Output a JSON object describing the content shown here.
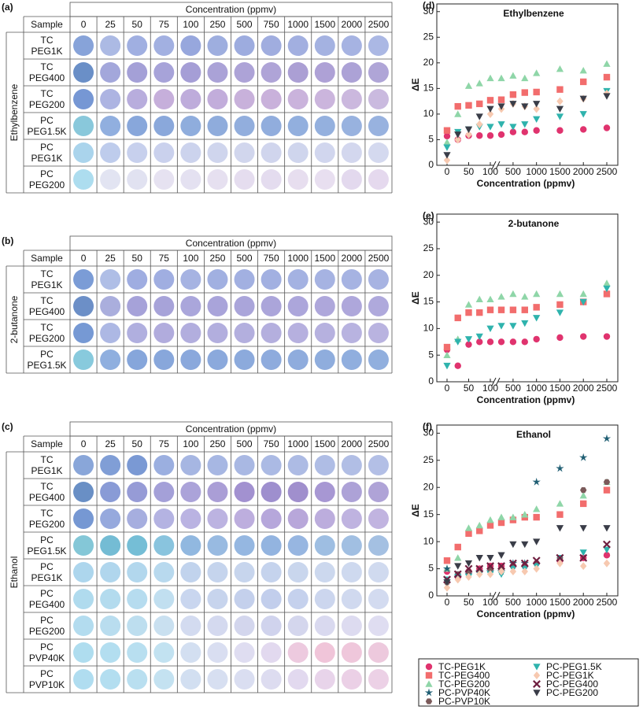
{
  "tables": [
    {
      "label": "(a)",
      "header": "Concentration (ppmv)",
      "sample_header": "Sample",
      "group": "Ethylbenzene",
      "columns": [
        "0",
        "25",
        "50",
        "75",
        "100",
        "250",
        "500",
        "750",
        "1000",
        "1500",
        "2000",
        "2500"
      ],
      "rows": [
        {
          "sample": [
            "TC",
            "PEG1K"
          ],
          "dot_colors": [
            "#7d9bd6",
            "#a5b4e2",
            "#98a8de",
            "#9aa9de",
            "#8e9fda",
            "#96a7dc",
            "#95a5dc",
            "#98a6dc",
            "#9aa8dd",
            "#9cabde",
            "#9eade0",
            "#a4b2e2"
          ]
        },
        {
          "sample": [
            "TC",
            "PEG400"
          ],
          "dot_colors": [
            "#5d86c2",
            "#9b9fd8",
            "#9c98d4",
            "#a09bd6",
            "#9d96d2",
            "#a39ad4",
            "#a69bd4",
            "#a89cd4",
            "#a497d0",
            "#a799d2",
            "#a59ad3",
            "#a89dd4"
          ]
        },
        {
          "sample": [
            "TC",
            "PEG200"
          ],
          "dot_colors": [
            "#6a8ed0",
            "#a6aee0",
            "#b2a6da",
            "#c1a8d8",
            "#b9a5d8",
            "#bda6d8",
            "#c3aad8",
            "#c4aad8",
            "#c6acd9",
            "#c7afda",
            "#c7b2db",
            "#c6b4dc"
          ]
        },
        {
          "sample": [
            "PC",
            "PEG1.5K"
          ],
          "dot_colors": [
            "#7fc3d8",
            "#88a8dc",
            "#7ea0d8",
            "#80a1d8",
            "#86a6da",
            "#86a5d9",
            "#89a7da",
            "#88a6da",
            "#89a8db",
            "#8ba9db",
            "#8fabdc",
            "#8fabdc"
          ]
        },
        {
          "sample": [
            "PC",
            "PEG1K"
          ],
          "dot_colors": [
            "#a3d0ea",
            "#b8c8ea",
            "#c2cceb",
            "#c6cdeb",
            "#c8cfeb",
            "#cbd1ec",
            "#cdd2ec",
            "#ccd1ec",
            "#cbd1ec",
            "#cdd3ed",
            "#cfd4ed",
            "#d0d6ee"
          ]
        },
        {
          "sample": [
            "PC",
            "PEG200"
          ],
          "dot_colors": [
            "#a6daee",
            "#dfe2f1",
            "#dedff0",
            "#e4e0f0",
            "#e2def0",
            "#e4ddef",
            "#e3daee",
            "#e2d9ee",
            "#e5dbee",
            "#e6dcef",
            "#e1d6ed",
            "#e3d6ed"
          ]
        }
      ]
    },
    {
      "label": "(b)",
      "header": "Concentration (ppmv)",
      "sample_header": "Sample",
      "group": "2-butanone",
      "columns": [
        "0",
        "25",
        "50",
        "75",
        "100",
        "250",
        "500",
        "750",
        "1000",
        "1500",
        "2000",
        "2500"
      ],
      "rows": [
        {
          "sample": [
            "TC",
            "PEG1K"
          ],
          "dot_colors": [
            "#7094d2",
            "#a8b8e4",
            "#97a6de",
            "#98a7de",
            "#9eade0",
            "#99a9de",
            "#9aa9de",
            "#9aa9de",
            "#9cabdf",
            "#9eade0",
            "#9eade0",
            "#9fade0"
          ]
        },
        {
          "sample": [
            "TC",
            "PEG400"
          ],
          "dot_colors": [
            "#5f86c2",
            "#a3a7da",
            "#9e9ad6",
            "#a09bd6",
            "#a39ed8",
            "#a29cd7",
            "#a39dd7",
            "#a49dd7",
            "#a59ed8",
            "#a79fd8",
            "#a7a0d8",
            "#a8a2d9"
          ]
        },
        {
          "sample": [
            "TC",
            "PEG200"
          ],
          "dot_colors": [
            "#6a90d0",
            "#a6b2e2",
            "#a9a8dc",
            "#aaa5da",
            "#aba7db",
            "#aba7db",
            "#aca8db",
            "#aea8db",
            "#b0a9dc",
            "#b0aadc",
            "#b2acdd",
            "#b3acdd"
          ]
        },
        {
          "sample": [
            "PC",
            "PEG1.5K"
          ],
          "dot_colors": [
            "#7ec6da",
            "#86a8dc",
            "#7c9ed8",
            "#7e9fd8",
            "#80a1d9",
            "#81a2d9",
            "#82a3d9",
            "#84a4da",
            "#85a5da",
            "#86a6da",
            "#87a7db",
            "#88a8db"
          ]
        }
      ]
    },
    {
      "label": "(c)",
      "header": "Concentration (ppmv)",
      "sample_header": "Sample",
      "group": "Ethanol",
      "columns": [
        "0",
        "25",
        "50",
        "75",
        "100",
        "250",
        "500",
        "750",
        "1000",
        "1500",
        "2000",
        "2500"
      ],
      "rows": [
        {
          "sample": [
            "TC",
            "PEG1K"
          ],
          "dot_colors": [
            "#7f9ed6",
            "#7596d3",
            "#6f90d0",
            "#93a8dd",
            "#9eb0e0",
            "#a0b1e1",
            "#a2b2e1",
            "#a4b4e2",
            "#a6b5e2",
            "#a8b7e3",
            "#aab8e3",
            "#acbae4"
          ]
        },
        {
          "sample": [
            "TC",
            "PEG400"
          ],
          "dot_colors": [
            "#5c85c0",
            "#7f92d3",
            "#8d93d3",
            "#9c98d5",
            "#a49bd6",
            "#a396d3",
            "#9a88cc",
            "#9686ca",
            "#9885c9",
            "#a08ecf",
            "#a69ad4",
            "#a89bd4"
          ]
        },
        {
          "sample": [
            "TC",
            "PEG200"
          ],
          "dot_colors": [
            "#6a8fcf",
            "#8da2da",
            "#9ea7dc",
            "#aeaddf",
            "#b4addf",
            "#b6acde",
            "#b7a7db",
            "#b0a0d8",
            "#b29fd7",
            "#b6a6da",
            "#baacdd",
            "#bcaedd"
          ]
        },
        {
          "sample": [
            "PC",
            "PEG1.5K"
          ],
          "dot_colors": [
            "#79c2d4",
            "#68b6d0",
            "#69b8d2",
            "#7fbfdb",
            "#88b2dd",
            "#8fb4de",
            "#8cb1de",
            "#8aaedd",
            "#8eb0de",
            "#96b8e0",
            "#99badf",
            "#9cbbe0"
          ]
        },
        {
          "sample": [
            "PC",
            "PEG1K"
          ],
          "dot_colors": [
            "#a6d3eb",
            "#a9d3ec",
            "#abd4ec",
            "#b2d6ed",
            "#bccfec",
            "#c0d0ec",
            "#c2d1ec",
            "#c0cfeb",
            "#c4d2ec",
            "#c8d5ed",
            "#cad6ee",
            "#ccd7ee"
          ]
        },
        {
          "sample": [
            "PC",
            "PEG400"
          ],
          "dot_colors": [
            "#a9d8ed",
            "#acd8ed",
            "#b0d9ee",
            "#bcdcef",
            "#c4d3ee",
            "#c2d0ec",
            "#bfccea",
            "#bdcaea",
            "#c0cdeb",
            "#c8d3ed",
            "#ccd6ee",
            "#cfd8ef"
          ]
        },
        {
          "sample": [
            "PC",
            "PEG200"
          ],
          "dot_colors": [
            "#add9ee",
            "#b3daee",
            "#b7dbee",
            "#c4ddef",
            "#cfd8ef",
            "#d0d6ee",
            "#cfd2ec",
            "#cccfeb",
            "#d0d2ec",
            "#d6d6ee",
            "#dad8ef",
            "#dcdaf0"
          ]
        },
        {
          "sample": [
            "PC",
            "PVP40K"
          ],
          "dot_colors": [
            "#a8daee",
            "#acdbef",
            "#b2dcef",
            "#bde0f0",
            "#cfdcf0",
            "#d6dbf0",
            "#dcdaf0",
            "#e0d6ee",
            "#ecc6dc",
            "#efc0d6",
            "#eec2d8",
            "#ecc4da"
          ]
        },
        {
          "sample": [
            "PC",
            "PVP10K"
          ],
          "dot_colors": [
            "#a9daef",
            "#addbef",
            "#b3dcef",
            "#bfe0f0",
            "#cedcf0",
            "#d4dcf0",
            "#d7dbf0",
            "#dad9ef",
            "#e0d6ee",
            "#e6d0e8",
            "#e9cce4",
            "#eacde4"
          ]
        }
      ]
    }
  ],
  "chart_data": [
    {
      "type": "scatter",
      "label": "(d)",
      "title": "Ethylbenzene",
      "xlabel": "Concentration (ppmv)",
      "ylabel": "ΔE",
      "x": [
        0,
        25,
        50,
        75,
        100,
        250,
        500,
        750,
        1000,
        1500,
        2000,
        2500
      ],
      "x_break": [
        100,
        250
      ],
      "xlim": [
        0,
        2500
      ],
      "xticks": [
        0,
        50,
        100,
        500,
        1000,
        1500,
        2000,
        2500
      ],
      "ylim": [
        0,
        31.5
      ],
      "yticks": [
        0,
        5,
        10,
        15,
        20,
        25,
        30
      ],
      "legend": false,
      "series": [
        {
          "name": "TC-PEG1K",
          "marker": "circle",
          "color": "#e0336e",
          "values": [
            5.7,
            5,
            5.8,
            5.8,
            5.8,
            6,
            6.5,
            6.5,
            6.8,
            6.8,
            7,
            7.3
          ]
        },
        {
          "name": "TC-PEG400",
          "marker": "square",
          "color": "#f26d6d",
          "values": [
            6.8,
            11.5,
            11.7,
            12,
            12.7,
            12.8,
            13.8,
            14.2,
            14.3,
            14.8,
            16.3,
            17.2
          ]
        },
        {
          "name": "TC-PEG200",
          "marker": "triangle-up",
          "color": "#8fd6a8",
          "values": [
            4.5,
            10,
            15.5,
            16,
            17,
            17,
            17.5,
            17,
            18,
            18.8,
            18.5,
            19.8
          ]
        },
        {
          "name": "PC-PEG1.5K",
          "marker": "triangle-down",
          "color": "#2fb3ad",
          "values": [
            3.5,
            6.5,
            7,
            7.5,
            7.5,
            8,
            7.5,
            8,
            9,
            9.5,
            10,
            14.5
          ]
        },
        {
          "name": "PC-PEG1K",
          "marker": "diamond",
          "color": "#f7c9b0",
          "values": [
            1,
            5,
            6,
            8,
            10,
            11,
            12,
            11.5,
            11,
            12.5,
            13,
            14
          ]
        },
        {
          "name": "PC-PEG200",
          "marker": "triangle-down",
          "color": "#3a3d48",
          "values": [
            2,
            6,
            7,
            9.5,
            11,
            11.5,
            12,
            11.5,
            12,
            11,
            13,
            13.5
          ]
        }
      ]
    },
    {
      "type": "scatter",
      "label": "(e)",
      "title": "2-butanone",
      "xlabel": "Concentration (ppmv)",
      "ylabel": "ΔE",
      "x": [
        0,
        25,
        50,
        75,
        100,
        250,
        500,
        750,
        1000,
        1500,
        2000,
        2500
      ],
      "x_break": [
        100,
        250
      ],
      "xlim": [
        0,
        2500
      ],
      "xticks": [
        0,
        50,
        100,
        500,
        1000,
        1500,
        2000,
        2500
      ],
      "ylim": [
        0,
        31.5
      ],
      "yticks": [
        0,
        5,
        10,
        15,
        20,
        25,
        30
      ],
      "legend": false,
      "series": [
        {
          "name": "TC-PEG1K",
          "marker": "circle",
          "color": "#e0336e",
          "values": [
            6,
            3,
            7,
            7.5,
            7.5,
            7.5,
            7.5,
            7.5,
            8,
            8.3,
            8.5,
            8.5
          ]
        },
        {
          "name": "TC-PEG400",
          "marker": "square",
          "color": "#f26d6d",
          "values": [
            6.5,
            12,
            13,
            13,
            13.5,
            13.5,
            13.5,
            13.5,
            14,
            14.5,
            15,
            16.5
          ]
        },
        {
          "name": "TC-PEG200",
          "marker": "triangle-up",
          "color": "#8fd6a8",
          "values": [
            5,
            8,
            14.5,
            15.5,
            15.5,
            16,
            16.5,
            16,
            16.5,
            16.5,
            16.5,
            18.5
          ]
        },
        {
          "name": "PC-PEG1.5K",
          "marker": "triangle-down",
          "color": "#2fb3ad",
          "values": [
            3,
            7.5,
            8,
            8.5,
            10,
            10.5,
            10.5,
            11,
            12,
            13,
            15,
            17.5
          ]
        }
      ]
    },
    {
      "type": "scatter",
      "label": "(f)",
      "title": "Ethanol",
      "xlabel": "Concentration (ppmv)",
      "ylabel": "ΔE",
      "x": [
        0,
        25,
        50,
        75,
        100,
        250,
        500,
        750,
        1000,
        1500,
        2000,
        2500
      ],
      "x_break": [
        100,
        250
      ],
      "xlim": [
        0,
        2500
      ],
      "xticks": [
        0,
        50,
        100,
        500,
        1000,
        1500,
        2000,
        2500
      ],
      "ylim": [
        0,
        31.5
      ],
      "yticks": [
        0,
        5,
        10,
        15,
        20,
        25,
        30
      ],
      "legend": "below",
      "series": [
        {
          "name": "TC-PEG1K",
          "marker": "circle",
          "color": "#e0336e",
          "values": [
            4.5,
            3.5,
            4.5,
            5,
            5.5,
            5.5,
            5.5,
            5.5,
            6,
            6.5,
            7,
            7.5
          ]
        },
        {
          "name": "TC-PEG400",
          "marker": "square",
          "color": "#f26d6d",
          "values": [
            6.5,
            9,
            11.5,
            12,
            13,
            13.5,
            14,
            14.5,
            14.5,
            15,
            17,
            19.5
          ]
        },
        {
          "name": "TC-PEG200",
          "marker": "triangle-up",
          "color": "#8fd6a8",
          "values": [
            5,
            7,
            12.5,
            13,
            14,
            14.5,
            14.5,
            15,
            16,
            17,
            18.5,
            21
          ]
        },
        {
          "name": "PC-PVP40K",
          "marker": "star",
          "color": "#1f5e73",
          "values": [
            5,
            3.5,
            4,
            4.5,
            4.5,
            4.5,
            6,
            6,
            21,
            23.5,
            25.5,
            29
          ]
        },
        {
          "name": "PC-PVP10K",
          "marker": "hexagon",
          "color": "#7b5a5a",
          "values": [
            2.5,
            4,
            4.5,
            4.5,
            5,
            5,
            5.5,
            5.5,
            6,
            7,
            19.5,
            21
          ]
        },
        {
          "name": "PC-PEG1.5K",
          "marker": "triangle-down",
          "color": "#2fb3ad",
          "values": [
            3,
            3.5,
            3.5,
            4,
            4,
            4,
            5,
            5,
            5.5,
            7,
            8,
            8.5
          ]
        },
        {
          "name": "PC-PEG1K",
          "marker": "diamond",
          "color": "#f7c9b0",
          "values": [
            1.5,
            3,
            3.5,
            4,
            4,
            4.5,
            4.5,
            4.5,
            5,
            6,
            5.5,
            6
          ]
        },
        {
          "name": "PC-PEG400",
          "marker": "x",
          "color": "#6f1f40",
          "values": [
            3,
            4,
            5,
            5,
            5.5,
            5.5,
            6,
            6,
            6.5,
            7,
            7,
            9.5
          ]
        },
        {
          "name": "PC-PEG200",
          "marker": "triangle-down",
          "color": "#3a3d48",
          "values": [
            2.5,
            5.5,
            6,
            7,
            7,
            7.5,
            9.5,
            9.5,
            10,
            12.5,
            12.5,
            12.5
          ]
        }
      ]
    }
  ]
}
